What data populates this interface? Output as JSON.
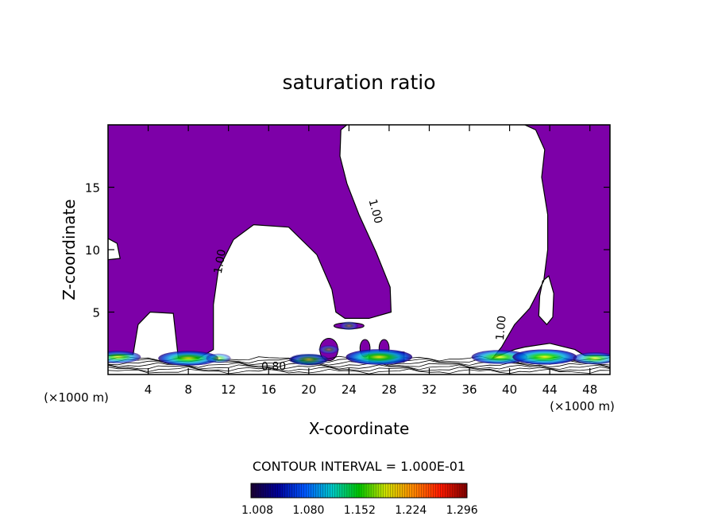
{
  "chart_data": {
    "type": "heatmap",
    "title": "saturation ratio",
    "xlabel": "X-coordinate",
    "ylabel": "Z-coordinate",
    "x_unit_left": "(×1000 m)",
    "x_unit_right": "(×1000 m)",
    "xlim": [
      0,
      50
    ],
    "ylim": [
      0,
      20
    ],
    "x_ticks": [
      4,
      8,
      12,
      16,
      20,
      24,
      28,
      32,
      36,
      40,
      44,
      48
    ],
    "y_ticks": [
      5,
      10,
      15
    ],
    "contour_interval_text": "CONTOUR INTERVAL = 1.000E-01",
    "contour_labels": [
      {
        "text": "1.00",
        "x": 11.5,
        "z": 9.0,
        "rotate": -80
      },
      {
        "text": "1.00",
        "x": 26.3,
        "z": 13.0,
        "rotate": 75
      },
      {
        "text": "1.00",
        "x": 39.5,
        "z": 3.7,
        "rotate": -85
      },
      {
        "text": "0.80",
        "x": 16.5,
        "z": 0.35,
        "rotate": 0
      }
    ],
    "colorbar": {
      "min": 1.008,
      "max": 1.312,
      "tick_labels": [
        "1.008",
        "1.080",
        "1.152",
        "1.224",
        "1.296"
      ],
      "colors": [
        "#1b0033",
        "#000099",
        "#0057ff",
        "#00c8c8",
        "#00c800",
        "#cfe000",
        "#ff8800",
        "#ff1a00",
        "#800000"
      ]
    },
    "saturated_fill_color": "#7d00a8",
    "saturated_region": {
      "note_level": "1.00",
      "outline": [
        [
          0,
          20
        ],
        [
          23.8,
          20
        ],
        [
          23.2,
          19.6
        ],
        [
          23.1,
          17.5
        ],
        [
          23.8,
          15.3
        ],
        [
          25.0,
          12.8
        ],
        [
          26.7,
          9.8
        ],
        [
          28.1,
          7.0
        ],
        [
          28.2,
          5.0
        ],
        [
          26.0,
          4.5
        ],
        [
          23.6,
          4.5
        ],
        [
          22.7,
          5.0
        ],
        [
          22.3,
          6.8
        ],
        [
          20.8,
          9.6
        ],
        [
          18.0,
          11.8
        ],
        [
          14.5,
          12.0
        ],
        [
          12.5,
          10.8
        ],
        [
          11.0,
          8.4
        ],
        [
          10.5,
          5.6
        ],
        [
          10.5,
          2.0
        ],
        [
          9.0,
          1.3
        ],
        [
          7.0,
          1.3
        ],
        [
          6.5,
          4.9
        ],
        [
          4.2,
          5.0
        ],
        [
          3.0,
          4.0
        ],
        [
          2.5,
          1.6
        ],
        [
          0,
          1.5
        ]
      ],
      "right_outline": [
        [
          41.5,
          20
        ],
        [
          50,
          20
        ],
        [
          50,
          1.5
        ],
        [
          48.7,
          1.5
        ],
        [
          47.5,
          1.5
        ],
        [
          46.5,
          2.0
        ],
        [
          44.0,
          2.5
        ],
        [
          41.5,
          2.2
        ],
        [
          40.5,
          2.0
        ],
        [
          38.3,
          1.3
        ],
        [
          39.2,
          2.2
        ],
        [
          40.5,
          4.0
        ],
        [
          42.0,
          5.3
        ],
        [
          43.4,
          7.5
        ],
        [
          43.8,
          10.0
        ],
        [
          43.8,
          12.8
        ],
        [
          43.2,
          15.8
        ],
        [
          43.5,
          18.0
        ],
        [
          42.6,
          19.6
        ]
      ],
      "holes": [
        [
          [
            0,
            10.9
          ],
          [
            0.9,
            10.5
          ],
          [
            1.2,
            9.3
          ],
          [
            0,
            9.2
          ]
        ],
        [
          [
            43.3,
            7.5
          ],
          [
            43.9,
            7.9
          ],
          [
            44.4,
            6.5
          ],
          [
            44.3,
            4.6
          ],
          [
            43.7,
            4.0
          ],
          [
            42.9,
            4.7
          ],
          [
            43.0,
            6.3
          ]
        ]
      ]
    },
    "supersaturated_blobs": [
      {
        "x": 1.0,
        "z": 1.4,
        "peak": 1.15
      },
      {
        "x": 8.0,
        "z": 1.3,
        "peak": 1.22
      },
      {
        "x": 11.0,
        "z": 1.3,
        "peak": 1.05
      },
      {
        "x": 20.0,
        "z": 1.2,
        "peak": 1.12
      },
      {
        "x": 22.0,
        "z": 2.0,
        "peak": 1.03
      },
      {
        "x": 24.0,
        "z": 3.9,
        "peak": 1.02
      },
      {
        "x": 27.0,
        "z": 1.4,
        "peak": 1.25
      },
      {
        "x": 39.0,
        "z": 1.4,
        "peak": 1.2
      },
      {
        "x": 43.5,
        "z": 1.4,
        "peak": 1.24
      },
      {
        "x": 48.5,
        "z": 1.3,
        "peak": 1.14
      }
    ]
  }
}
